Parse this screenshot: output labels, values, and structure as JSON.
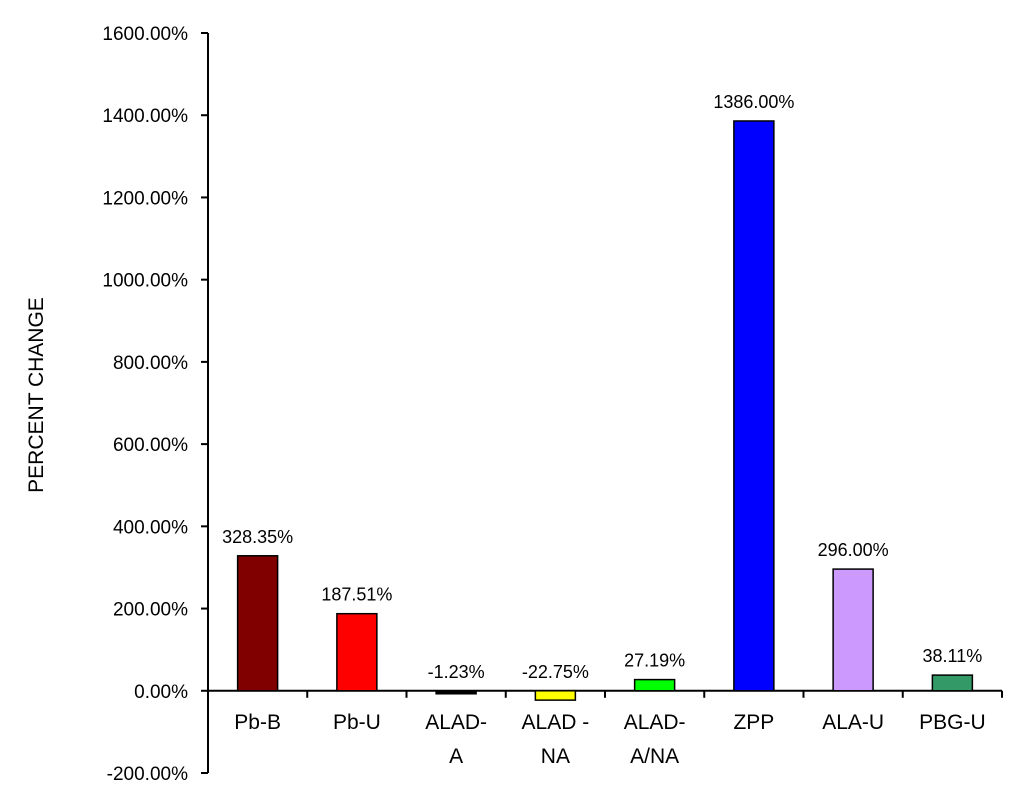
{
  "chart_data": {
    "type": "bar",
    "title": "",
    "xlabel": "",
    "ylabel": "PERCENT CHANGE",
    "ylim": [
      -200,
      1600
    ],
    "yticks": [
      -200,
      0,
      200,
      400,
      600,
      800,
      1000,
      1200,
      1400,
      1600
    ],
    "ytick_labels": [
      "-200.00%",
      "0.00%",
      "200.00%",
      "400.00%",
      "600.00%",
      "800.00%",
      "1000.00%",
      "1200.00%",
      "1400.00%",
      "1600.00%"
    ],
    "grid": false,
    "legend": "none",
    "categories": [
      [
        "Pb-B"
      ],
      [
        "Pb-U"
      ],
      [
        "ALAD-",
        "A"
      ],
      [
        "ALAD -",
        "NA"
      ],
      [
        "ALAD-",
        "A/NA"
      ],
      [
        "ZPP"
      ],
      [
        "ALA-U"
      ],
      [
        "PBG-U"
      ]
    ],
    "values": [
      328.35,
      187.51,
      -1.23,
      -22.75,
      27.19,
      1386.0,
      296.0,
      38.11
    ],
    "data_labels": [
      "328.35%",
      "187.51%",
      "-1.23%",
      "-22.75%",
      "27.19%",
      "1386.00%",
      "296.00%",
      "38.11%"
    ],
    "colors": [
      "#800000",
      "#ff0000",
      "#000000",
      "#ffff00",
      "#00ff00",
      "#0000ff",
      "#cc99ff",
      "#339966"
    ]
  }
}
